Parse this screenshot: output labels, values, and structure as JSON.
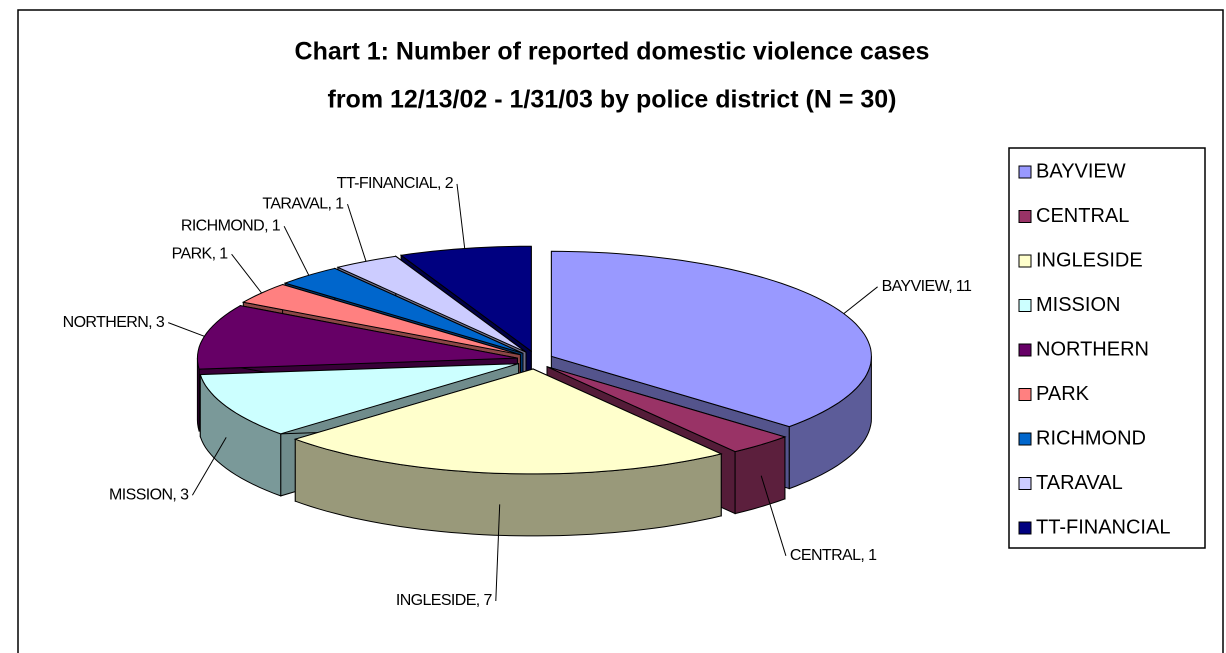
{
  "chart_data": {
    "type": "pie3d",
    "title": [
      "Chart 1: Number of reported domestic violence cases",
      "from 12/13/02 - 1/31/03 by police district (N = 30)"
    ],
    "categories": [
      "BAYVIEW",
      "CENTRAL",
      "INGLESIDE",
      "MISSION",
      "NORTHERN",
      "PARK",
      "RICHMOND",
      "TARAVAL",
      "TT-FINANCIAL"
    ],
    "values": [
      11,
      1,
      7,
      3,
      3,
      1,
      1,
      1,
      2
    ],
    "value_labels": [
      "BAYVIEW, 11",
      "CENTRAL, 1",
      "INGLESIDE, 7",
      "MISSION, 3",
      "NORTHERN, 3",
      "PARK, 1",
      "RICHMOND, 1",
      "TARAVAL, 1",
      "TT-FINANCIAL, 2"
    ],
    "colors": [
      "#9999ff",
      "#993366",
      "#ffffcc",
      "#ccffff",
      "#660066",
      "#ff8080",
      "#0066cc",
      "#ccccff",
      "#000080"
    ],
    "legend": "right"
  }
}
